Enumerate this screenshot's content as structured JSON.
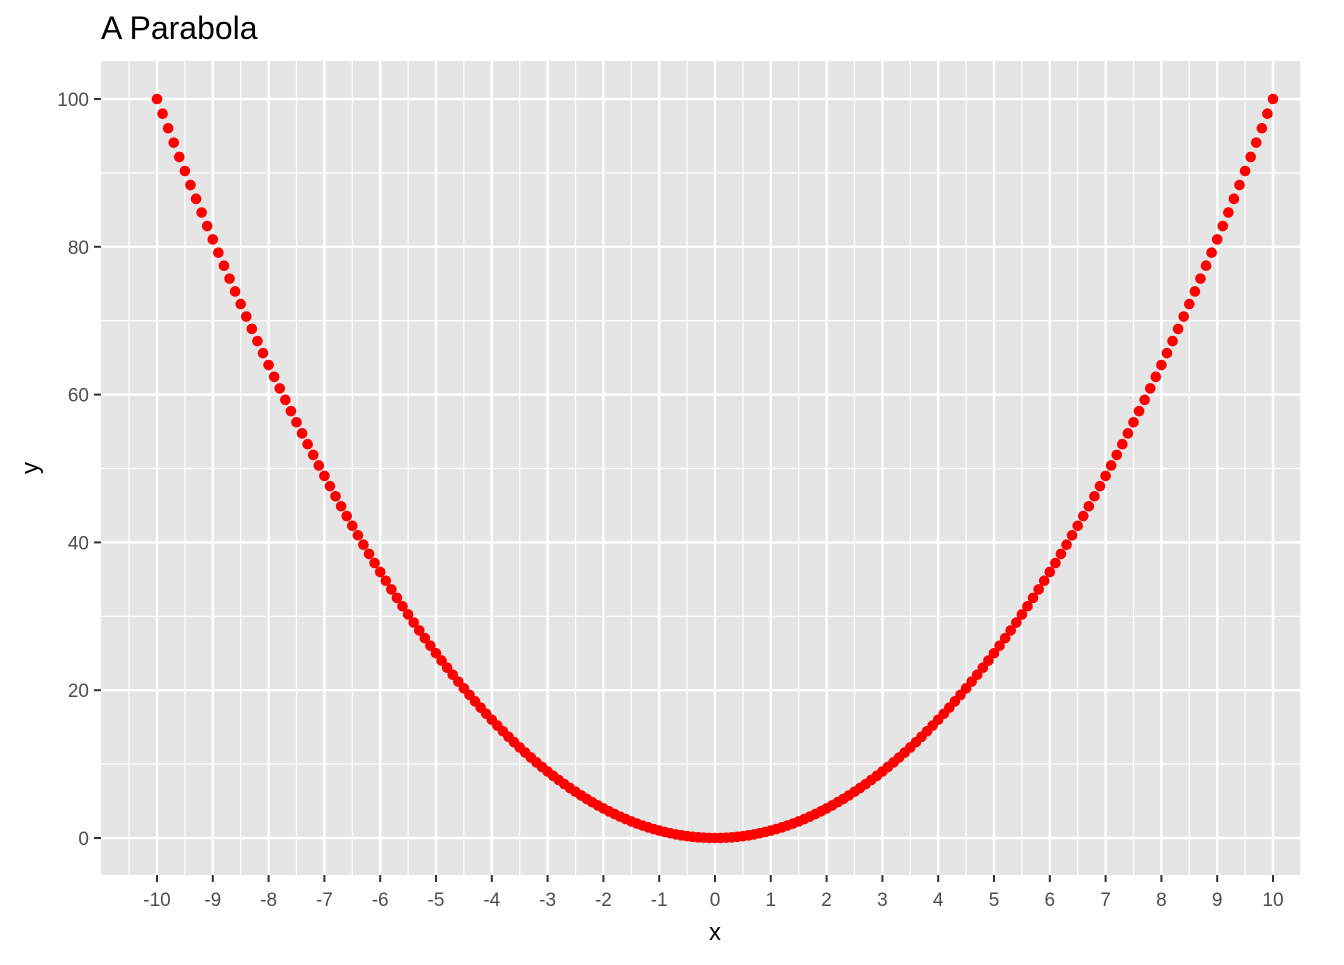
{
  "chart_data": {
    "type": "scatter",
    "title": "A Parabola",
    "xlabel": "x",
    "ylabel": "y",
    "function": "y = x^2",
    "xlim": [
      -10,
      10
    ],
    "ylim": [
      0,
      100
    ],
    "x_ticks": [
      -10,
      -9,
      -8,
      -7,
      -6,
      -5,
      -4,
      -3,
      -2,
      -1,
      0,
      1,
      2,
      3,
      4,
      5,
      6,
      7,
      8,
      9,
      10
    ],
    "x_tick_labels": [
      "-10",
      "-9",
      "-8",
      "-7",
      "-6",
      "-5",
      "-4",
      "-3",
      "-2",
      "-1",
      "0",
      "1",
      "2",
      "3",
      "4",
      "5",
      "6",
      "7",
      "8",
      "9",
      "10"
    ],
    "y_ticks": [
      0,
      20,
      40,
      60,
      80,
      100
    ],
    "y_tick_labels": [
      "0",
      "20",
      "40",
      "60",
      "80",
      "100"
    ],
    "grid": true,
    "panel_background": "#e5e5e5",
    "grid_color": "#ffffff",
    "point_color": "#ff0000",
    "series": [
      {
        "x_start": -10,
        "x_end": 10,
        "x_step": 0.1
      }
    ]
  }
}
